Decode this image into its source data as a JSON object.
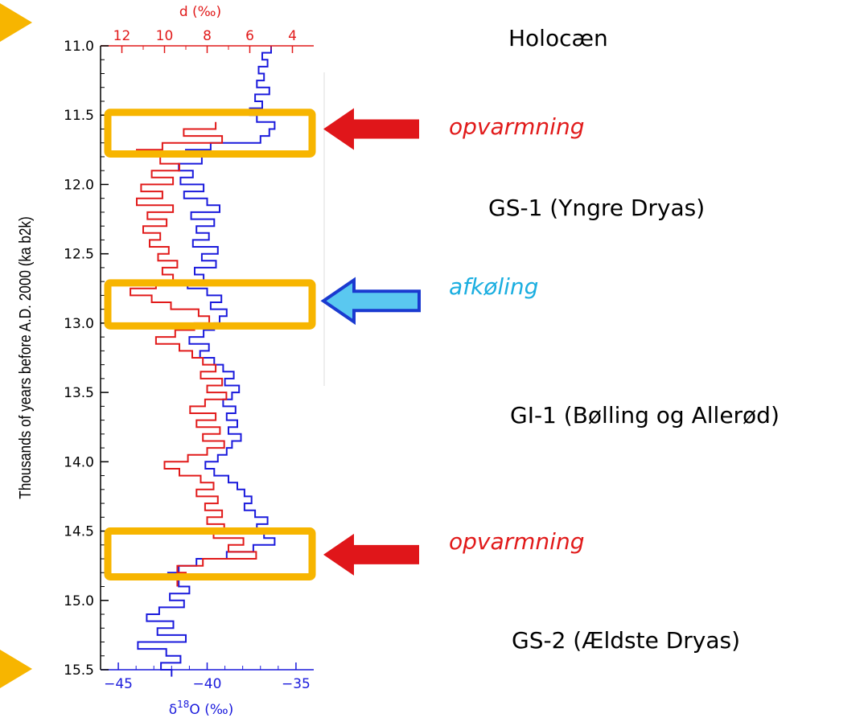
{
  "chart_data": {
    "type": "line",
    "y_axis": {
      "label": "Thousands of years before A.D. 2000 (ka b2k)",
      "range": [
        11.0,
        15.5
      ],
      "ticks": [
        "11.0",
        "11.5",
        "12.0",
        "12.5",
        "13.0",
        "13.5",
        "14.0",
        "14.5",
        "15.0",
        "15.5"
      ],
      "inverted": true
    },
    "x_bottom": {
      "label_main": "δ",
      "label_sup": "18",
      "label_rest": "O (‰)",
      "range": [
        -46,
        -34
      ],
      "ticks": [
        "−45",
        "−40",
        "−35"
      ],
      "color": "#1a1adc"
    },
    "x_top": {
      "label": "d (‰)",
      "range": [
        13,
        3
      ],
      "ticks": [
        "12",
        "10",
        "8",
        "6",
        "4"
      ],
      "color": "#e11a1a"
    },
    "series": [
      {
        "axis": "bottom",
        "color": "#1a1adc",
        "steps": [
          [
            11.0,
            -36.4
          ],
          [
            11.05,
            -36.9
          ],
          [
            11.1,
            -36.6
          ],
          [
            11.15,
            -37.1
          ],
          [
            11.2,
            -36.8
          ],
          [
            11.25,
            -37.2
          ],
          [
            11.3,
            -36.5
          ],
          [
            11.35,
            -37.3
          ],
          [
            11.4,
            -36.9
          ],
          [
            11.45,
            -37.6
          ],
          [
            11.5,
            -37.2
          ],
          [
            11.55,
            -36.2
          ],
          [
            11.6,
            -36.5
          ],
          [
            11.65,
            -37.0
          ],
          [
            11.7,
            -39.8
          ],
          [
            11.75,
            -41.2
          ],
          [
            11.8,
            -40.3
          ],
          [
            11.85,
            -41.6
          ],
          [
            11.9,
            -40.8
          ],
          [
            11.95,
            -41.5
          ],
          [
            12.0,
            -40.2
          ],
          [
            12.05,
            -41.3
          ],
          [
            12.1,
            -40.0
          ],
          [
            12.15,
            -39.3
          ],
          [
            12.2,
            -40.9
          ],
          [
            12.25,
            -39.6
          ],
          [
            12.3,
            -40.6
          ],
          [
            12.35,
            -39.9
          ],
          [
            12.4,
            -40.8
          ],
          [
            12.45,
            -39.4
          ],
          [
            12.5,
            -40.3
          ],
          [
            12.55,
            -39.5
          ],
          [
            12.6,
            -40.7
          ],
          [
            12.65,
            -40.2
          ],
          [
            12.7,
            -41.1
          ],
          [
            12.75,
            -40.0
          ],
          [
            12.8,
            -39.2
          ],
          [
            12.85,
            -39.8
          ],
          [
            12.9,
            -38.9
          ],
          [
            12.95,
            -39.3
          ],
          [
            13.0,
            -39.6
          ],
          [
            13.05,
            -40.2
          ],
          [
            13.1,
            -41.0
          ],
          [
            13.15,
            -39.9
          ],
          [
            13.2,
            -40.4
          ],
          [
            13.25,
            -39.6
          ],
          [
            13.3,
            -39.1
          ],
          [
            13.35,
            -38.5
          ],
          [
            13.4,
            -39.0
          ],
          [
            13.45,
            -38.2
          ],
          [
            13.5,
            -38.6
          ],
          [
            13.55,
            -39.1
          ],
          [
            13.6,
            -38.4
          ],
          [
            13.65,
            -38.9
          ],
          [
            13.7,
            -38.3
          ],
          [
            13.75,
            -38.8
          ],
          [
            13.8,
            -38.1
          ],
          [
            13.85,
            -38.6
          ],
          [
            13.9,
            -38.9
          ],
          [
            13.95,
            -39.4
          ],
          [
            14.0,
            -40.1
          ],
          [
            14.05,
            -39.6
          ],
          [
            14.1,
            -38.8
          ],
          [
            14.15,
            -38.3
          ],
          [
            14.2,
            -37.9
          ],
          [
            14.25,
            -37.5
          ],
          [
            14.3,
            -37.9
          ],
          [
            14.35,
            -37.3
          ],
          [
            14.4,
            -36.6
          ],
          [
            14.45,
            -37.2
          ],
          [
            14.5,
            -36.8
          ],
          [
            14.55,
            -36.2
          ],
          [
            14.6,
            -37.4
          ],
          [
            14.65,
            -38.9
          ],
          [
            14.7,
            -40.6
          ],
          [
            14.75,
            -41.6
          ],
          [
            14.8,
            -42.2
          ],
          [
            14.85,
            -41.6
          ],
          [
            14.9,
            -41.0
          ],
          [
            14.95,
            -42.1
          ],
          [
            15.0,
            -41.3
          ],
          [
            15.05,
            -42.7
          ],
          [
            15.1,
            -43.4
          ],
          [
            15.15,
            -41.9
          ],
          [
            15.2,
            -42.8
          ],
          [
            15.25,
            -41.2
          ],
          [
            15.3,
            -43.9
          ],
          [
            15.35,
            -42.3
          ],
          [
            15.4,
            -41.5
          ],
          [
            15.45,
            -42.6
          ],
          [
            15.5,
            -42.0
          ]
        ]
      },
      {
        "axis": "top",
        "color": "#e11a1a",
        "steps": [
          [
            11.55,
            7.6
          ],
          [
            11.6,
            9.1
          ],
          [
            11.65,
            7.3
          ],
          [
            11.7,
            10.1
          ],
          [
            11.75,
            11.3
          ],
          [
            11.8,
            10.2
          ],
          [
            11.85,
            9.3
          ],
          [
            11.9,
            10.6
          ],
          [
            11.95,
            9.6
          ],
          [
            12.0,
            11.1
          ],
          [
            12.05,
            10.1
          ],
          [
            12.1,
            11.3
          ],
          [
            12.15,
            9.6
          ],
          [
            12.2,
            10.8
          ],
          [
            12.25,
            9.9
          ],
          [
            12.3,
            11.0
          ],
          [
            12.35,
            10.2
          ],
          [
            12.4,
            10.7
          ],
          [
            12.45,
            9.8
          ],
          [
            12.5,
            10.3
          ],
          [
            12.55,
            9.4
          ],
          [
            12.6,
            10.1
          ],
          [
            12.65,
            9.6
          ],
          [
            12.7,
            10.4
          ],
          [
            12.75,
            11.6
          ],
          [
            12.8,
            10.6
          ],
          [
            12.85,
            9.7
          ],
          [
            12.9,
            8.4
          ],
          [
            12.95,
            7.9
          ],
          [
            13.0,
            8.6
          ],
          [
            13.05,
            9.5
          ],
          [
            13.1,
            10.4
          ],
          [
            13.15,
            9.3
          ],
          [
            13.2,
            8.7
          ],
          [
            13.25,
            8.2
          ],
          [
            13.3,
            7.6
          ],
          [
            13.35,
            8.3
          ],
          [
            13.4,
            7.3
          ],
          [
            13.45,
            8.0
          ],
          [
            13.5,
            7.1
          ],
          [
            13.55,
            8.1
          ],
          [
            13.6,
            8.8
          ],
          [
            13.65,
            7.6
          ],
          [
            13.7,
            8.5
          ],
          [
            13.75,
            7.4
          ],
          [
            13.8,
            8.2
          ],
          [
            13.85,
            7.2
          ],
          [
            13.9,
            8.0
          ],
          [
            13.95,
            8.9
          ],
          [
            14.0,
            10.0
          ],
          [
            14.05,
            9.3
          ],
          [
            14.1,
            8.3
          ],
          [
            14.15,
            7.7
          ],
          [
            14.2,
            8.5
          ],
          [
            14.25,
            7.5
          ],
          [
            14.3,
            8.1
          ],
          [
            14.35,
            7.3
          ],
          [
            14.4,
            8.0
          ],
          [
            14.45,
            7.2
          ],
          [
            14.5,
            7.7
          ],
          [
            14.55,
            6.3
          ],
          [
            14.6,
            7.0
          ],
          [
            14.65,
            5.7
          ],
          [
            14.7,
            8.2
          ],
          [
            14.75,
            9.4
          ],
          [
            14.8,
            9.0
          ],
          [
            14.85,
            9.4
          ]
        ]
      }
    ],
    "highlight_boxes": [
      {
        "from": 11.48,
        "to": 11.78
      },
      {
        "from": 12.71,
        "to": 13.02
      },
      {
        "from": 14.5,
        "to": 14.83
      }
    ]
  },
  "annotations": [
    {
      "text": "Holocæn",
      "kind": "period"
    },
    {
      "text": "opvarmning",
      "kind": "warming",
      "arrow": "red",
      "at": 11.6
    },
    {
      "text": "GS-1 (Yngre Dryas)",
      "kind": "period"
    },
    {
      "text": "afkøling",
      "kind": "cooling",
      "arrow": "blue",
      "at": 12.84
    },
    {
      "text": "GI-1 (Bølling og Allerød)",
      "kind": "period"
    },
    {
      "text": "opvarmning",
      "kind": "warming",
      "arrow": "red",
      "at": 14.67
    },
    {
      "text": "GS-2 (Ældste Dryas)",
      "kind": "period"
    }
  ],
  "colors": {
    "highlight": "#f7b500",
    "warming_text": "#e11a1a",
    "cooling_text": "#1aaee0",
    "warming_arrow": "#e0161a",
    "cooling_arrow": "#5ac8f0",
    "cooling_arrow_outline": "#1a3ad0"
  }
}
